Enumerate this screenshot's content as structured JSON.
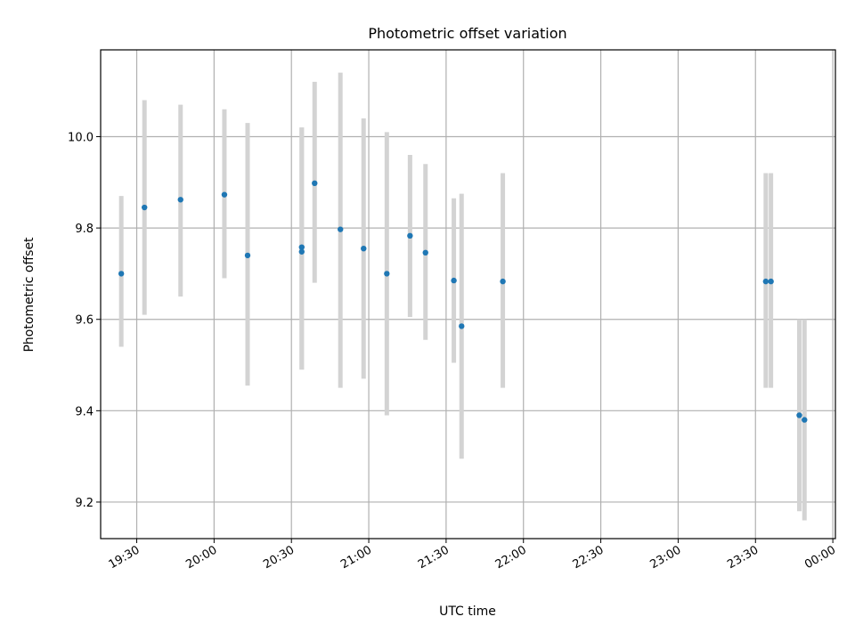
{
  "chart_data": {
    "type": "scatter",
    "title": "Photometric offset variation",
    "xlabel": "UTC time",
    "ylabel": "Photometric offset",
    "xlim": [
      "19:16",
      "00:01"
    ],
    "ylim": [
      9.12,
      10.19
    ],
    "x_ticks": [
      "19:30",
      "20:00",
      "20:30",
      "21:00",
      "21:30",
      "22:00",
      "22:30",
      "23:00",
      "23:30",
      "00:00"
    ],
    "y_ticks": [
      "9.2",
      "9.4",
      "9.6",
      "9.8",
      "10.0"
    ],
    "grid": true,
    "colors": {
      "points": "#1f77b4",
      "errorbars": "#d3d3d3"
    },
    "points": [
      {
        "time": "19:24",
        "y": 9.7,
        "low": 9.54,
        "high": 9.87
      },
      {
        "time": "19:33",
        "y": 9.845,
        "low": 9.61,
        "high": 10.08
      },
      {
        "time": "19:47",
        "y": 9.862,
        "low": 9.65,
        "high": 10.07
      },
      {
        "time": "20:04",
        "y": 9.873,
        "low": 9.69,
        "high": 10.06
      },
      {
        "time": "20:13",
        "y": 9.74,
        "low": 9.455,
        "high": 10.03
      },
      {
        "time": "20:34",
        "y": 9.758,
        "low": 9.49,
        "high": 10.02
      },
      {
        "time": "20:34",
        "y": 9.748,
        "low": 9.49,
        "high": 10.02
      },
      {
        "time": "20:39",
        "y": 9.898,
        "low": 9.68,
        "high": 10.12
      },
      {
        "time": "20:49",
        "y": 9.797,
        "low": 9.45,
        "high": 10.14
      },
      {
        "time": "20:58",
        "y": 9.755,
        "low": 9.47,
        "high": 10.04
      },
      {
        "time": "21:07",
        "y": 9.7,
        "low": 9.39,
        "high": 10.01
      },
      {
        "time": "21:16",
        "y": 9.783,
        "low": 9.605,
        "high": 9.96
      },
      {
        "time": "21:22",
        "y": 9.746,
        "low": 9.555,
        "high": 9.94
      },
      {
        "time": "21:33",
        "y": 9.685,
        "low": 9.505,
        "high": 9.865
      },
      {
        "time": "21:36",
        "y": 9.585,
        "low": 9.295,
        "high": 9.875
      },
      {
        "time": "21:52",
        "y": 9.683,
        "low": 9.45,
        "high": 9.92
      },
      {
        "time": "23:34",
        "y": 9.683,
        "low": 9.45,
        "high": 9.92
      },
      {
        "time": "23:36",
        "y": 9.683,
        "low": 9.45,
        "high": 9.92
      },
      {
        "time": "23:47",
        "y": 9.39,
        "low": 9.18,
        "high": 9.6
      },
      {
        "time": "23:49",
        "y": 9.38,
        "low": 9.16,
        "high": 9.6
      }
    ]
  }
}
